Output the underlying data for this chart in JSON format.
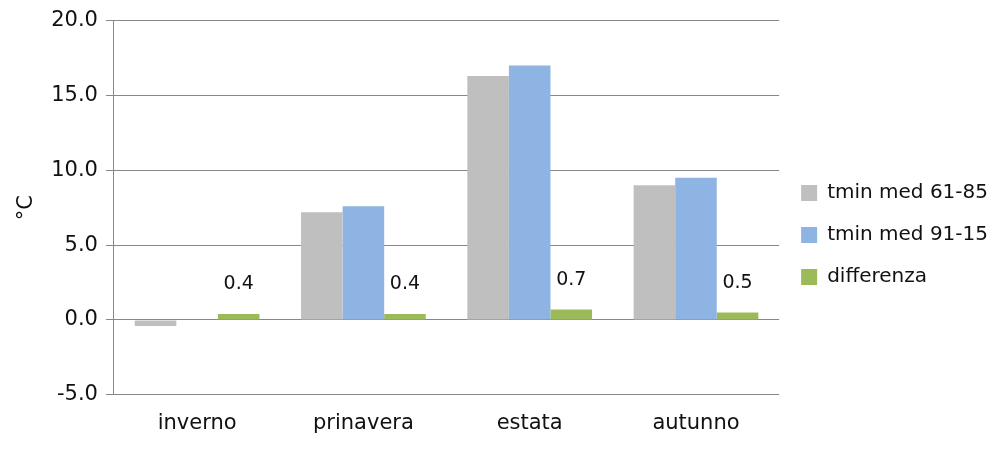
{
  "chart_data": {
    "type": "bar",
    "ylabel": "°C",
    "categories": [
      "inverno",
      "prinavera",
      "estata",
      "autunno"
    ],
    "series": [
      {
        "name": "tmin med 61-85",
        "color": "#bfbfbf",
        "values": [
          -0.4,
          7.2,
          16.3,
          9.0
        ]
      },
      {
        "name": "tmin med 91-15",
        "color": "#8db4e2",
        "values": [
          0.0,
          7.6,
          17.0,
          9.5
        ]
      },
      {
        "name": "differenza",
        "color": "#9bbb59",
        "values": [
          0.4,
          0.4,
          0.7,
          0.5
        ],
        "value_labels": [
          "0.4",
          "0.4",
          "0.7",
          "0.5"
        ]
      }
    ],
    "ylim": [
      -5,
      20
    ],
    "yticks": [
      {
        "value": -5,
        "label": "-5.0"
      },
      {
        "value": 0,
        "label": "0.0"
      },
      {
        "value": 5,
        "label": "5.0"
      },
      {
        "value": 10,
        "label": "10.0"
      },
      {
        "value": 15,
        "label": "15.0"
      },
      {
        "value": 20,
        "label": "20.0"
      }
    ],
    "grid": "y",
    "legend": "right"
  }
}
